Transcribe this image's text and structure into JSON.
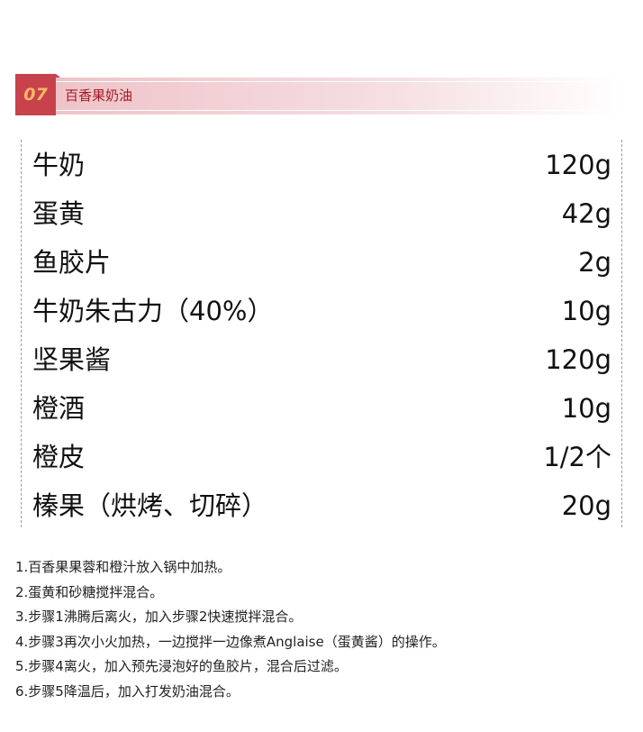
{
  "header": {
    "number": "07",
    "title": "百香果奶油",
    "colors": {
      "accent": "#c8424c",
      "number": "#f7b866",
      "title": "#a41a22"
    }
  },
  "ingredients": [
    {
      "name": "牛奶",
      "amount": "120g"
    },
    {
      "name": "蛋黄",
      "amount": "42g"
    },
    {
      "name": "鱼胶片",
      "amount": "2g"
    },
    {
      "name": "牛奶朱古力（40%）",
      "amount": "10g"
    },
    {
      "name": "坚果酱",
      "amount": "120g"
    },
    {
      "name": "橙酒",
      "amount": "10g"
    },
    {
      "name": "橙皮",
      "amount": "1/2个"
    },
    {
      "name": "榛果（烘烤、切碎）",
      "amount": "20g"
    }
  ],
  "steps": [
    "1.百香果果蓉和橙汁放入锅中加热。",
    "2.蛋黄和砂糖搅拌混合。",
    "3.步骤1沸腾后离火，加入步骤2快速搅拌混合。",
    "4.步骤3再次小火加热，一边搅拌一边像煮Anglaise（蛋黄酱）的操作。",
    "5.步骤4离火，加入预先浸泡好的鱼胶片，混合后过滤。",
    "6.步骤5降温后，加入打发奶油混合。"
  ]
}
